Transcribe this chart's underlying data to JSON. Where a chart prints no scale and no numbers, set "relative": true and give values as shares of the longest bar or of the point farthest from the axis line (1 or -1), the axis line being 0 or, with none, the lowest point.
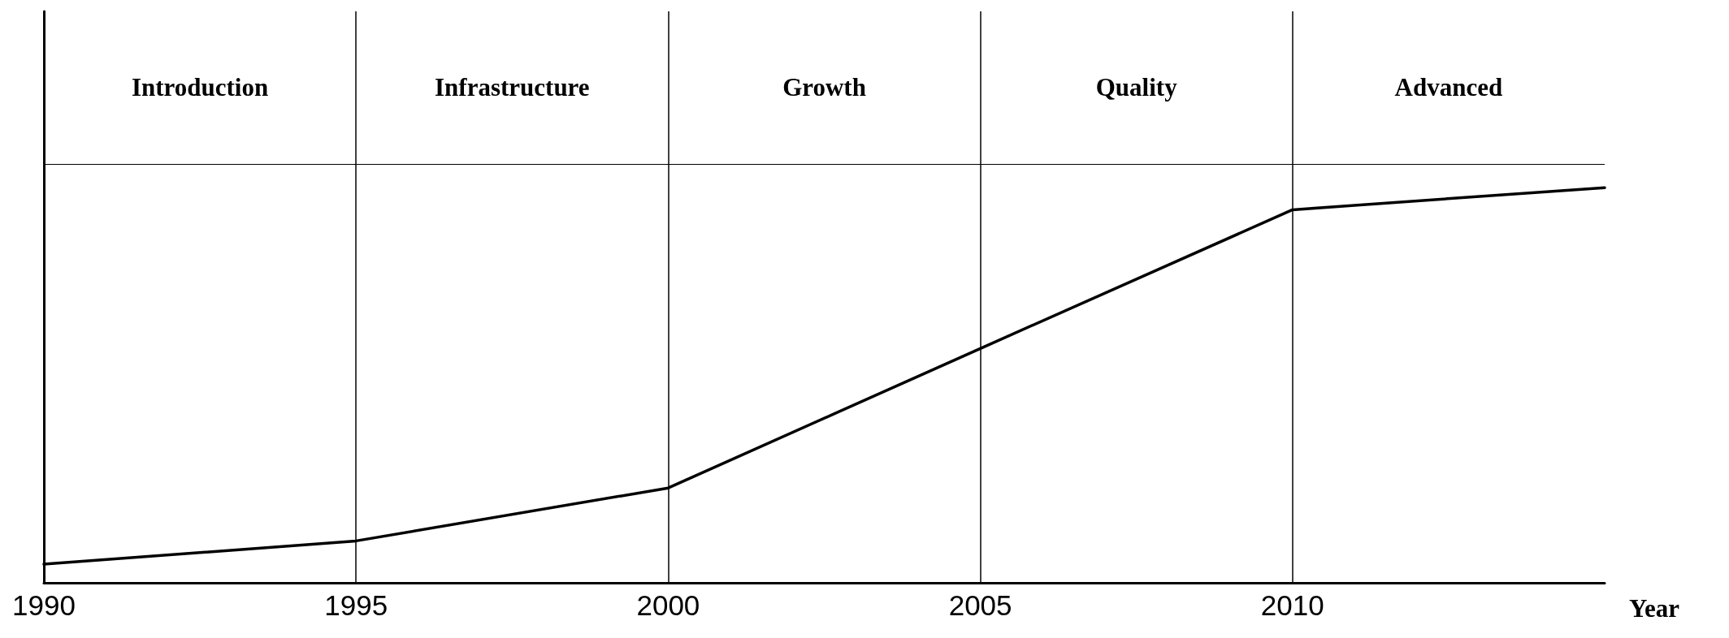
{
  "chart_data": {
    "type": "line",
    "relative": true,
    "xlabel": "Year",
    "x": [
      1990,
      1995,
      2000,
      2005,
      2010,
      2015
    ],
    "series": [
      {
        "color": "#000000",
        "values": [
          0.047,
          0.106,
          0.24,
          0.593,
          0.944,
          1.0
        ]
      }
    ],
    "xlim": [
      1990,
      2015
    ],
    "xticks": [
      1990,
      1995,
      2000,
      2005,
      2010
    ],
    "ref_lines": [
      {
        "axis": "x",
        "value": 1995,
        "color": "#000000"
      },
      {
        "axis": "x",
        "value": 2000,
        "color": "#000000"
      },
      {
        "axis": "x",
        "value": 2005,
        "color": "#000000"
      },
      {
        "axis": "x",
        "value": 2010,
        "color": "#000000"
      }
    ],
    "annotations": [
      "Introduction",
      "Infrastructure",
      "Growth",
      "Quality",
      "Advanced"
    ],
    "grid": false,
    "marker": "none",
    "line_style": "solid"
  }
}
